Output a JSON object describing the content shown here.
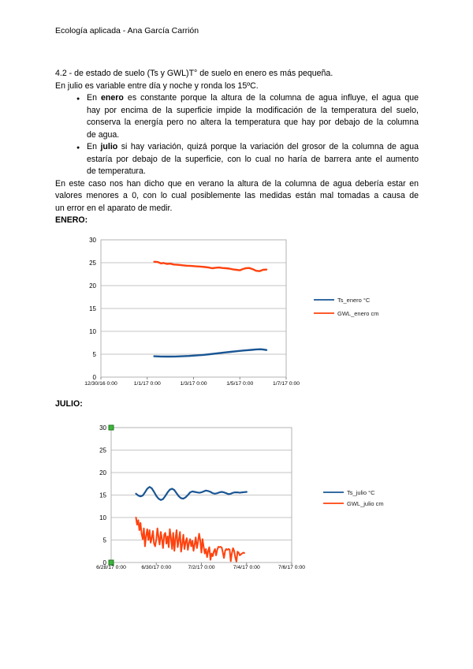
{
  "document": {
    "header": "Ecología aplicada - Ana García Carrión",
    "intro_lines": [
      "4.2 - de estado de suelo (Ts y GWL)T° de suelo en enero es más pequeña.",
      "En julio es variable entre día y noche y ronda los 15ºC."
    ],
    "bullet_glyph": "●",
    "bullets": [
      {
        "lead": "En ",
        "bold_word": "enero",
        "first_line_rest": " es constante porque la altura de la columna de agua influye, el agua que",
        "lines": [
          "hay por encima de la superficie impide la modificación de la temperatura del suelo,",
          "conserva la energía pero no altera la temperatura que hay por debajo de la columna",
          "de agua."
        ]
      },
      {
        "lead": "En ",
        "bold_word": "julio",
        "first_line_rest": " si hay variación, quizá porque la variación del grosor de la columna de agua",
        "lines": [
          "estaría por debajo de la superficie, con lo cual no haría de barrera ante el aumento",
          "de temperatura."
        ]
      }
    ],
    "closing_lines": [
      "En este caso nos han dicho que en verano la altura de la columna de agua debería estar en",
      "valores menores a 0, con lo cual posiblemente las medidas están mal tomadas a causa de",
      "un error en el aparato de medir."
    ],
    "section_enero": "ENERO:",
    "section_julio": "JULIO:"
  },
  "colors": {
    "series_blue": "#1a5694",
    "series_red": "#ff420e",
    "gridline": "#c6c6c6",
    "plot_border": "#b3b3b3",
    "selection_handle": "#3db53d",
    "selection_handle_border": "#1f7a1f"
  },
  "chart_data": [
    {
      "id": "enero",
      "type": "line",
      "title": "ENERO",
      "xlabel": "",
      "ylabel": "",
      "grid": true,
      "legend_position": "right",
      "ylim": [
        0,
        30
      ],
      "y_ticks": [
        0,
        5,
        10,
        15,
        20,
        25,
        30
      ],
      "x_domain": [
        0,
        8
      ],
      "x_tick_labels": [
        "12/30/16 0:00",
        "1/1/17 0:00",
        "1/3/17 0:00",
        "1/5/17 0:00",
        "1/7/17 0:00"
      ],
      "series": [
        {
          "name": "Ts_enero °C",
          "color": "#1a5694",
          "width": 2.4,
          "x": [
            2.3,
            2.6,
            2.9,
            3.2,
            3.5,
            3.8,
            4.1,
            4.4,
            4.7,
            5.0,
            5.3,
            5.6,
            5.9,
            6.2,
            6.5,
            6.7,
            6.9,
            7.05,
            7.15
          ],
          "y": [
            4.55,
            4.5,
            4.48,
            4.5,
            4.55,
            4.62,
            4.72,
            4.85,
            5.0,
            5.18,
            5.36,
            5.52,
            5.68,
            5.82,
            5.95,
            6.05,
            6.08,
            6.0,
            5.92
          ]
        },
        {
          "name": "GWL_enero cm",
          "color": "#ff420e",
          "width": 2.4,
          "x": [
            2.3,
            2.45,
            2.6,
            2.7,
            2.85,
            3.0,
            3.15,
            3.3,
            3.5,
            3.7,
            3.9,
            4.1,
            4.3,
            4.5,
            4.65,
            4.8,
            4.95,
            5.1,
            5.25,
            5.4,
            5.55,
            5.7,
            5.85,
            6.0,
            6.1,
            6.25,
            6.4,
            6.55,
            6.7,
            6.85,
            7.0,
            7.15
          ],
          "y": [
            25.2,
            25.15,
            24.85,
            24.95,
            24.75,
            24.8,
            24.6,
            24.55,
            24.45,
            24.35,
            24.3,
            24.2,
            24.15,
            24.05,
            23.95,
            23.8,
            23.9,
            23.95,
            23.85,
            23.8,
            23.7,
            23.55,
            23.45,
            23.35,
            23.55,
            23.8,
            23.85,
            23.6,
            23.25,
            23.15,
            23.45,
            23.5
          ]
        }
      ]
    },
    {
      "id": "julio",
      "type": "line",
      "title": "JULIO",
      "xlabel": "",
      "ylabel": "",
      "grid": true,
      "legend_position": "right",
      "ylim": [
        0,
        30
      ],
      "y_ticks": [
        0,
        5,
        10,
        15,
        20,
        25,
        30
      ],
      "x_domain": [
        0,
        8
      ],
      "x_tick_labels": [
        "6/28/17 0:00",
        "6/30/17 0:00",
        "7/2/17 0:00",
        "7/4/17 0:00",
        "7/6/17 0:00"
      ],
      "selected": true,
      "series": [
        {
          "name": "Ts_julio °C",
          "color": "#1a5694",
          "width": 2.2,
          "x_start": 1.1,
          "x_step": 0.1,
          "y": [
            15.3,
            14.9,
            14.7,
            14.9,
            15.6,
            16.4,
            16.8,
            16.5,
            15.7,
            14.8,
            14.2,
            13.9,
            14.1,
            14.8,
            15.6,
            16.2,
            16.4,
            16.1,
            15.4,
            14.7,
            14.3,
            14.2,
            14.5,
            15.0,
            15.6,
            15.8,
            15.7,
            15.6,
            15.5,
            15.6,
            15.8,
            16.0,
            15.9,
            15.7,
            15.4,
            15.3,
            15.4,
            15.6,
            15.7,
            15.6,
            15.4,
            15.2,
            15.3,
            15.5,
            15.6,
            15.6,
            15.5,
            15.6,
            15.65,
            15.7
          ]
        },
        {
          "name": "GWL_julio cm",
          "color": "#ff420e",
          "width": 2.0,
          "x_start": 1.1,
          "x_step": 0.05,
          "y": [
            10.0,
            8.4,
            9.4,
            7.2,
            8.8,
            6.4,
            5.2,
            7.6,
            3.6,
            6.0,
            7.4,
            5.0,
            7.2,
            4.4,
            5.4,
            7.0,
            4.2,
            3.6,
            5.2,
            7.6,
            5.6,
            4.0,
            6.8,
            5.2,
            3.2,
            6.2,
            6.6,
            4.2,
            5.8,
            3.4,
            7.4,
            5.4,
            3.0,
            6.6,
            2.6,
            5.4,
            7.2,
            3.4,
            5.0,
            6.8,
            2.4,
            4.2,
            6.2,
            3.0,
            4.6,
            5.4,
            2.8,
            4.4,
            5.2,
            3.6,
            4.8,
            2.6,
            4.0,
            5.6,
            3.2,
            4.6,
            6.4,
            4.8,
            2.2,
            5.2,
            3.4,
            2.0,
            3.0,
            1.2,
            2.6,
            3.4,
            0.6,
            2.0,
            1.4,
            2.4,
            3.0,
            1.6,
            2.8,
            3.5,
            3.4,
            3.5,
            3.3,
            2.2,
            1.0,
            2.6,
            3.0,
            2.8,
            3.0,
            2.9,
            0.3,
            2.0,
            3.2,
            2.6,
            1.2,
            0.2,
            2.4,
            2.2,
            1.6,
            1.8,
            2.0,
            2.2,
            2.1
          ]
        }
      ]
    }
  ]
}
